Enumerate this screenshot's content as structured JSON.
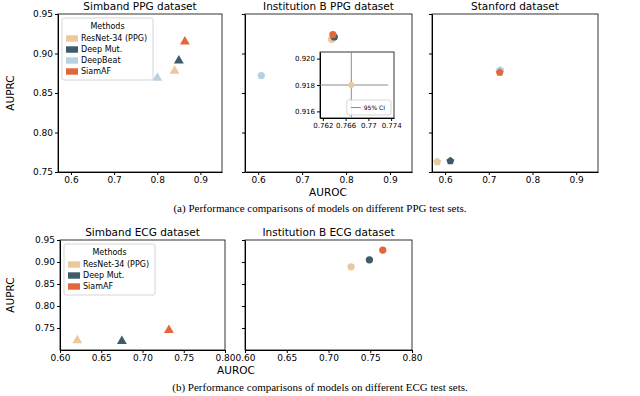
{
  "captions": [
    "(a) Performance comparisons of models on different PPG test sets.",
    "(b) Performance comparisons of models on different ECG test sets."
  ],
  "chart_data": [
    {
      "type": "scatter",
      "title": "Simband PPG dataset",
      "y_label": "AUPRC",
      "xlim": [
        0.57,
        0.95
      ],
      "xticks": [
        0.6,
        0.7,
        0.8,
        0.9
      ],
      "ylim": [
        0.75,
        0.95
      ],
      "yticks": [
        0.75,
        {
          "value": 0.8,
          "label": "0.80"
        },
        0.85,
        {
          "value": 0.9,
          "label": "0.90"
        },
        0.95
      ],
      "marker": "triangle",
      "legend": "upper left",
      "legend_title": "Methods",
      "series": [
        {
          "name": "ResNet-34 (PPG)",
          "color": "#ebc99d",
          "x": [
            0.84
          ],
          "values": [
            0.878
          ]
        },
        {
          "name": "Deep Mut.",
          "color": "#3e5a6b",
          "x": [
            0.85
          ],
          "values": [
            0.891
          ]
        },
        {
          "name": "DeepBeat",
          "color": "#b7d0e2",
          "x": [
            0.8
          ],
          "values": [
            0.869
          ]
        },
        {
          "name": "SiamAF",
          "color": "#e2683b",
          "x": [
            0.864
          ],
          "values": [
            0.915
          ]
        }
      ]
    },
    {
      "type": "scatter",
      "title": "Institution B PPG dataset",
      "x_label": "AUROC",
      "xlim": [
        0.57,
        0.95
      ],
      "xticks": [
        0.6,
        0.7,
        0.8,
        0.9
      ],
      "ylim": [
        0.75,
        0.95
      ],
      "yticks": [
        0.75,
        {
          "value": 0.8,
          "label": "0.80"
        },
        0.85,
        {
          "value": 0.9,
          "label": "0.90"
        },
        0.95
      ],
      "marker": "circle",
      "tick_labels": "x",
      "series": [
        {
          "name": "ResNet-34 (PPG)",
          "color": "#ebc99d",
          "x": [
            0.767
          ],
          "values": [
            0.918
          ]
        },
        {
          "name": "Deep Mut.",
          "color": "#3e5a6b",
          "x": [
            0.773
          ],
          "values": [
            0.921
          ]
        },
        {
          "name": "DeepBeat",
          "color": "#b7d0e2",
          "x": [
            0.607
          ],
          "values": [
            0.872
          ]
        },
        {
          "name": "SiamAF",
          "color": "#e2683b",
          "x": [
            0.77
          ],
          "values": [
            0.924
          ]
        }
      ]
    },
    {
      "type": "scatter",
      "title": "Stanford dataset",
      "xlim": [
        0.57,
        0.95
      ],
      "xticks": [
        0.6,
        0.7,
        0.8,
        0.9
      ],
      "ylim": [
        0.75,
        0.95
      ],
      "yticks": [
        0.75,
        {
          "value": 0.8,
          "label": "0.80"
        },
        0.85,
        {
          "value": 0.9,
          "label": "0.90"
        },
        0.95
      ],
      "marker": "pentagon",
      "tick_labels": "x",
      "series": [
        {
          "name": "ResNet-34 (PPG)",
          "color": "#ebc99d",
          "x": [
            0.582
          ],
          "values": [
            0.763
          ]
        },
        {
          "name": "Deep Mut.",
          "color": "#3e5a6b",
          "x": [
            0.612
          ],
          "values": [
            0.764
          ]
        },
        {
          "name": "DeepBeat",
          "color": "#b7d0e2",
          "x": [
            0.726
          ],
          "values": [
            0.879
          ]
        },
        {
          "name": "SiamAF",
          "color": "#e2683b",
          "x": [
            0.725
          ],
          "values": [
            0.876
          ]
        }
      ]
    },
    {
      "type": "scatter",
      "xlim": [
        0.7615,
        0.7745
      ],
      "xticks": [
        0.762,
        0.766,
        0.77,
        0.774
      ],
      "ylim": [
        0.9155,
        0.9205
      ],
      "yticks": [
        0.916,
        0.918,
        {
          "value": 0.92,
          "label": "0.920"
        }
      ],
      "marker": "circle",
      "legend": "lower right",
      "series": [
        {
          "name": "95% CI",
          "color": "#8c8c8c",
          "x": [
            0.767
          ],
          "values": [
            0.918
          ],
          "x_error": [
            0.0065
          ],
          "y_error": [
            0.0028
          ]
        }
      ]
    },
    {
      "type": "scatter",
      "title": "Simband ECG dataset",
      "y_label": "AUPRC",
      "xlim": [
        0.6,
        0.8
      ],
      "xticks": [
        {
          "value": 0.6,
          "label": "0.60"
        },
        0.65,
        {
          "value": 0.7,
          "label": "0.70"
        },
        0.75,
        {
          "value": 0.8,
          "label": "0.80"
        }
      ],
      "ylim": [
        0.7,
        0.95
      ],
      "yticks": [
        0.75,
        {
          "value": 0.8,
          "label": "0.80"
        },
        0.85,
        {
          "value": 0.9,
          "label": "0.90"
        },
        0.95
      ],
      "marker": "triangle",
      "legend": "upper left",
      "legend_title": "Methods",
      "series": [
        {
          "name": "ResNet-34 (PPG)",
          "color": "#ebc99d",
          "x": [
            0.621
          ],
          "values": [
            0.722
          ]
        },
        {
          "name": "Deep Mut.",
          "color": "#3e5a6b",
          "x": [
            0.675
          ],
          "values": [
            0.72
          ]
        },
        {
          "name": "SiamAF",
          "color": "#e2683b",
          "x": [
            0.732
          ],
          "values": [
            0.745
          ]
        }
      ]
    },
    {
      "type": "scatter",
      "title": "Institution B ECG dataset",
      "x_label": "AUROC",
      "xlim": [
        0.6,
        0.8
      ],
      "xticks": [
        {
          "value": 0.6,
          "label": "0.60"
        },
        0.65,
        {
          "value": 0.7,
          "label": "0.70"
        },
        0.75,
        {
          "value": 0.8,
          "label": "0.80"
        }
      ],
      "ylim": [
        0.7,
        0.95
      ],
      "yticks": [
        0.75,
        {
          "value": 0.8,
          "label": "0.80"
        },
        0.85,
        {
          "value": 0.9,
          "label": "0.90"
        },
        0.95
      ],
      "marker": "circle",
      "tick_labels": "x",
      "series": [
        {
          "name": "ResNet-34 (PPG)",
          "color": "#ebc99d",
          "x": [
            0.727
          ],
          "values": [
            0.889
          ]
        },
        {
          "name": "Deep Mut.",
          "color": "#3e5a6b",
          "x": [
            0.749
          ],
          "values": [
            0.905
          ]
        },
        {
          "name": "SiamAF",
          "color": "#e2683b",
          "x": [
            0.765
          ],
          "values": [
            0.927
          ]
        }
      ]
    }
  ]
}
